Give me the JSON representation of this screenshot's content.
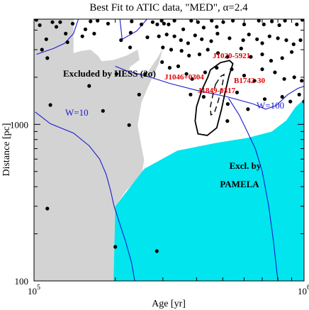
{
  "chart_data": {
    "type": "scatter",
    "title": "Best Fit to ATIC data, \"MED\", α=2.4",
    "xlabel": "Age [yr]",
    "ylabel": "Distance [pc]",
    "x_scale": "log",
    "y_scale": "log",
    "xlim": [
      100000,
      1000000
    ],
    "ylim": [
      100,
      4700
    ],
    "x_ticks": [
      {
        "value": 100000,
        "base": "10",
        "exp": "5"
      },
      {
        "value": 1000000,
        "base": "10",
        "exp": "6"
      }
    ],
    "y_ticks": [
      {
        "value": 100,
        "label": "100"
      },
      {
        "value": 1000,
        "label": "1000"
      }
    ],
    "grid": false,
    "colors": {
      "hess_excluded": "#d3d3d3",
      "pamela_excluded": "#00e5ee",
      "w_contours": "#1a1ad0",
      "pulsar_labels": "#e00000",
      "points": "#000000"
    },
    "region_labels": [
      {
        "text": "Excluded by HESS (2σ)",
        "color": "#000000"
      },
      {
        "text": "Excl. by",
        "color": "#000000"
      },
      {
        "text": "PAMELA",
        "color": "#000000"
      }
    ],
    "contour_labels": [
      {
        "text": "W=10"
      },
      {
        "text": "W=100"
      }
    ],
    "pulsar_labels": [
      {
        "text": "J1020-5921"
      },
      {
        "text": "J1046+0304"
      },
      {
        "text": "B1742-30"
      },
      {
        "text": "J1849-0317"
      }
    ],
    "hess_region": [
      [
        140000,
        4700
      ],
      [
        140000,
        2850
      ],
      [
        150000,
        2950
      ],
      [
        162000,
        3000
      ],
      [
        173000,
        2730
      ],
      [
        178000,
        2530
      ],
      [
        197000,
        2580
      ],
      [
        220000,
        2750
      ],
      [
        242000,
        3000
      ],
      [
        246000,
        2580
      ],
      [
        226000,
        2320
      ],
      [
        225000,
        2120
      ],
      [
        262000,
        2130
      ],
      [
        285000,
        2620
      ],
      [
        300000,
        3050
      ],
      [
        290000,
        2450
      ],
      [
        263000,
        1700
      ],
      [
        250000,
        1380
      ],
      [
        242000,
        990
      ],
      [
        250000,
        720
      ],
      [
        256000,
        590
      ],
      [
        250000,
        470
      ],
      [
        220000,
        380
      ],
      [
        200000,
        300
      ],
      [
        197000,
        100
      ],
      [
        100000,
        100
      ],
      [
        100000,
        4700
      ]
    ],
    "pamela_region": [
      [
        197000,
        100
      ],
      [
        200000,
        300
      ],
      [
        256000,
        520
      ],
      [
        340000,
        680
      ],
      [
        470000,
        760
      ],
      [
        620000,
        820
      ],
      [
        760000,
        900
      ],
      [
        860000,
        1060
      ],
      [
        930000,
        1290
      ],
      [
        1000000,
        1450
      ],
      [
        1000000,
        100
      ]
    ],
    "w10_contour": [
      [
        102000,
        2800
      ],
      [
        118000,
        3050
      ],
      [
        130000,
        3300
      ],
      [
        140000,
        3800
      ],
      [
        146000,
        4700
      ],
      [
        101000,
        1200
      ],
      [
        115000,
        1010
      ],
      [
        140000,
        880
      ],
      [
        160000,
        730
      ],
      [
        175000,
        600
      ],
      [
        185000,
        480
      ],
      [
        192000,
        380
      ],
      [
        198000,
        300
      ],
      [
        208000,
        230
      ],
      [
        218000,
        180
      ],
      [
        230000,
        130
      ],
      [
        236000,
        100
      ]
    ],
    "w100_contour": [
      [
        208000,
        4700
      ],
      [
        212000,
        3500
      ],
      [
        240000,
        3950
      ],
      [
        262000,
        4700
      ],
      [
        200000,
        2350
      ],
      [
        220000,
        2200
      ],
      [
        270000,
        2000
      ],
      [
        320000,
        1820
      ],
      [
        400000,
        1650
      ],
      [
        520000,
        1500
      ],
      [
        650000,
        1350
      ],
      [
        720000,
        1250
      ],
      [
        790000,
        1320
      ],
      [
        870000,
        1550
      ],
      [
        950000,
        1700
      ],
      [
        1000000,
        1750
      ],
      [
        525000,
        1470
      ],
      [
        575000,
        1150
      ],
      [
        620000,
        880
      ],
      [
        660000,
        700
      ],
      [
        700000,
        500
      ],
      [
        740000,
        300
      ],
      [
        770000,
        180
      ],
      [
        800000,
        100
      ]
    ],
    "best_fit_solid_contour": [
      [
        450000,
        2230
      ],
      [
        490000,
        2480
      ],
      [
        530000,
        2560
      ],
      [
        545000,
        2440
      ],
      [
        528000,
        2050
      ],
      [
        510000,
        1600
      ],
      [
        495000,
        1250
      ],
      [
        475000,
        950
      ],
      [
        438000,
        850
      ],
      [
        405000,
        870
      ],
      [
        395000,
        1050
      ],
      [
        400000,
        1300
      ],
      [
        418000,
        1650
      ],
      [
        440000,
        2000
      ],
      [
        450000,
        2230
      ]
    ],
    "best_fit_dashed_contour": [
      [
        470000,
        1800
      ],
      [
        490000,
        2020
      ],
      [
        505000,
        2080
      ],
      [
        500000,
        1850
      ],
      [
        490000,
        1580
      ],
      [
        478000,
        1360
      ],
      [
        465000,
        1180
      ],
      [
        452000,
        1150
      ],
      [
        450000,
        1300
      ],
      [
        458000,
        1500
      ],
      [
        465000,
        1680
      ],
      [
        470000,
        1800
      ]
    ],
    "points": [
      [
        102000,
        4650
      ],
      [
        105000,
        4300
      ],
      [
        111000,
        3500
      ],
      [
        117000,
        4500
      ],
      [
        121000,
        4200
      ],
      [
        125000,
        4500
      ],
      [
        131000,
        3800
      ],
      [
        139000,
        4400
      ],
      [
        107000,
        3000
      ],
      [
        112000,
        2650
      ],
      [
        133000,
        3350
      ],
      [
        151000,
        3650
      ],
      [
        155000,
        4050
      ],
      [
        162000,
        4550
      ],
      [
        167000,
        3800
      ],
      [
        172000,
        4600
      ],
      [
        188000,
        4400
      ],
      [
        230000,
        4550
      ],
      [
        250000,
        4350
      ],
      [
        263000,
        3600
      ],
      [
        227000,
        3100
      ],
      [
        202000,
        2100
      ],
      [
        210000,
        3450
      ],
      [
        228000,
        3850
      ],
      [
        258000,
        2100
      ],
      [
        275000,
        4500
      ],
      [
        286000,
        4350
      ],
      [
        297000,
        4600
      ],
      [
        303000,
        4400
      ],
      [
        315000,
        4350
      ],
      [
        331000,
        4600
      ],
      [
        357000,
        4050
      ],
      [
        382000,
        4600
      ],
      [
        405000,
        4500
      ],
      [
        425000,
        4150
      ],
      [
        455000,
        4600
      ],
      [
        475000,
        4200
      ],
      [
        502000,
        4500
      ],
      [
        545000,
        4600
      ],
      [
        600000,
        4350
      ],
      [
        680000,
        4600
      ],
      [
        710000,
        4350
      ],
      [
        760000,
        4550
      ],
      [
        810000,
        4300
      ],
      [
        850000,
        4600
      ],
      [
        940000,
        4350
      ],
      [
        985000,
        4650
      ],
      [
        290000,
        3650
      ],
      [
        310000,
        3750
      ],
      [
        331000,
        3650
      ],
      [
        350000,
        3450
      ],
      [
        372000,
        3300
      ],
      [
        395000,
        3700
      ],
      [
        418000,
        3500
      ],
      [
        453000,
        3400
      ],
      [
        478000,
        3800
      ],
      [
        530000,
        3550
      ],
      [
        595000,
        3450
      ],
      [
        625000,
        3750
      ],
      [
        670000,
        3500
      ],
      [
        700000,
        3300
      ],
      [
        745000,
        3650
      ],
      [
        800000,
        3550
      ],
      [
        860000,
        3450
      ],
      [
        915000,
        3250
      ],
      [
        970000,
        3450
      ],
      [
        300000,
        3100
      ],
      [
        322000,
        3000
      ],
      [
        352000,
        2950
      ],
      [
        375000,
        2750
      ],
      [
        410000,
        2800
      ],
      [
        440000,
        3000
      ],
      [
        480000,
        2850
      ],
      [
        520000,
        2700
      ],
      [
        585000,
        3050
      ],
      [
        635000,
        2700
      ],
      [
        700000,
        2800
      ],
      [
        755000,
        2550
      ],
      [
        830000,
        2650
      ],
      [
        900000,
        2900
      ],
      [
        298000,
        2500
      ],
      [
        318000,
        2300
      ],
      [
        342000,
        2350
      ],
      [
        367000,
        2100
      ],
      [
        385000,
        1950
      ],
      [
        430000,
        2150
      ],
      [
        475000,
        2300
      ],
      [
        540000,
        2250
      ],
      [
        600000,
        2050
      ],
      [
        655000,
        1900
      ],
      [
        700000,
        2250
      ],
      [
        780000,
        2150
      ],
      [
        845000,
        1950
      ],
      [
        920000,
        2000
      ],
      [
        980000,
        1900
      ],
      [
        380000,
        1550
      ],
      [
        425000,
        1500
      ],
      [
        522000,
        1350
      ],
      [
        565000,
        1600
      ],
      [
        620000,
        1250
      ],
      [
        715000,
        1450
      ],
      [
        830000,
        1500
      ],
      [
        890000,
        1400
      ],
      [
        960000,
        1550
      ],
      [
        1000000,
        1400
      ],
      [
        520000,
        1050
      ],
      [
        115000,
        1330
      ],
      [
        160000,
        1760
      ],
      [
        180000,
        1220
      ],
      [
        225000,
        990
      ],
      [
        245000,
        1550
      ],
      [
        112000,
        290
      ],
      [
        200000,
        165
      ],
      [
        285000,
        155
      ]
    ]
  }
}
